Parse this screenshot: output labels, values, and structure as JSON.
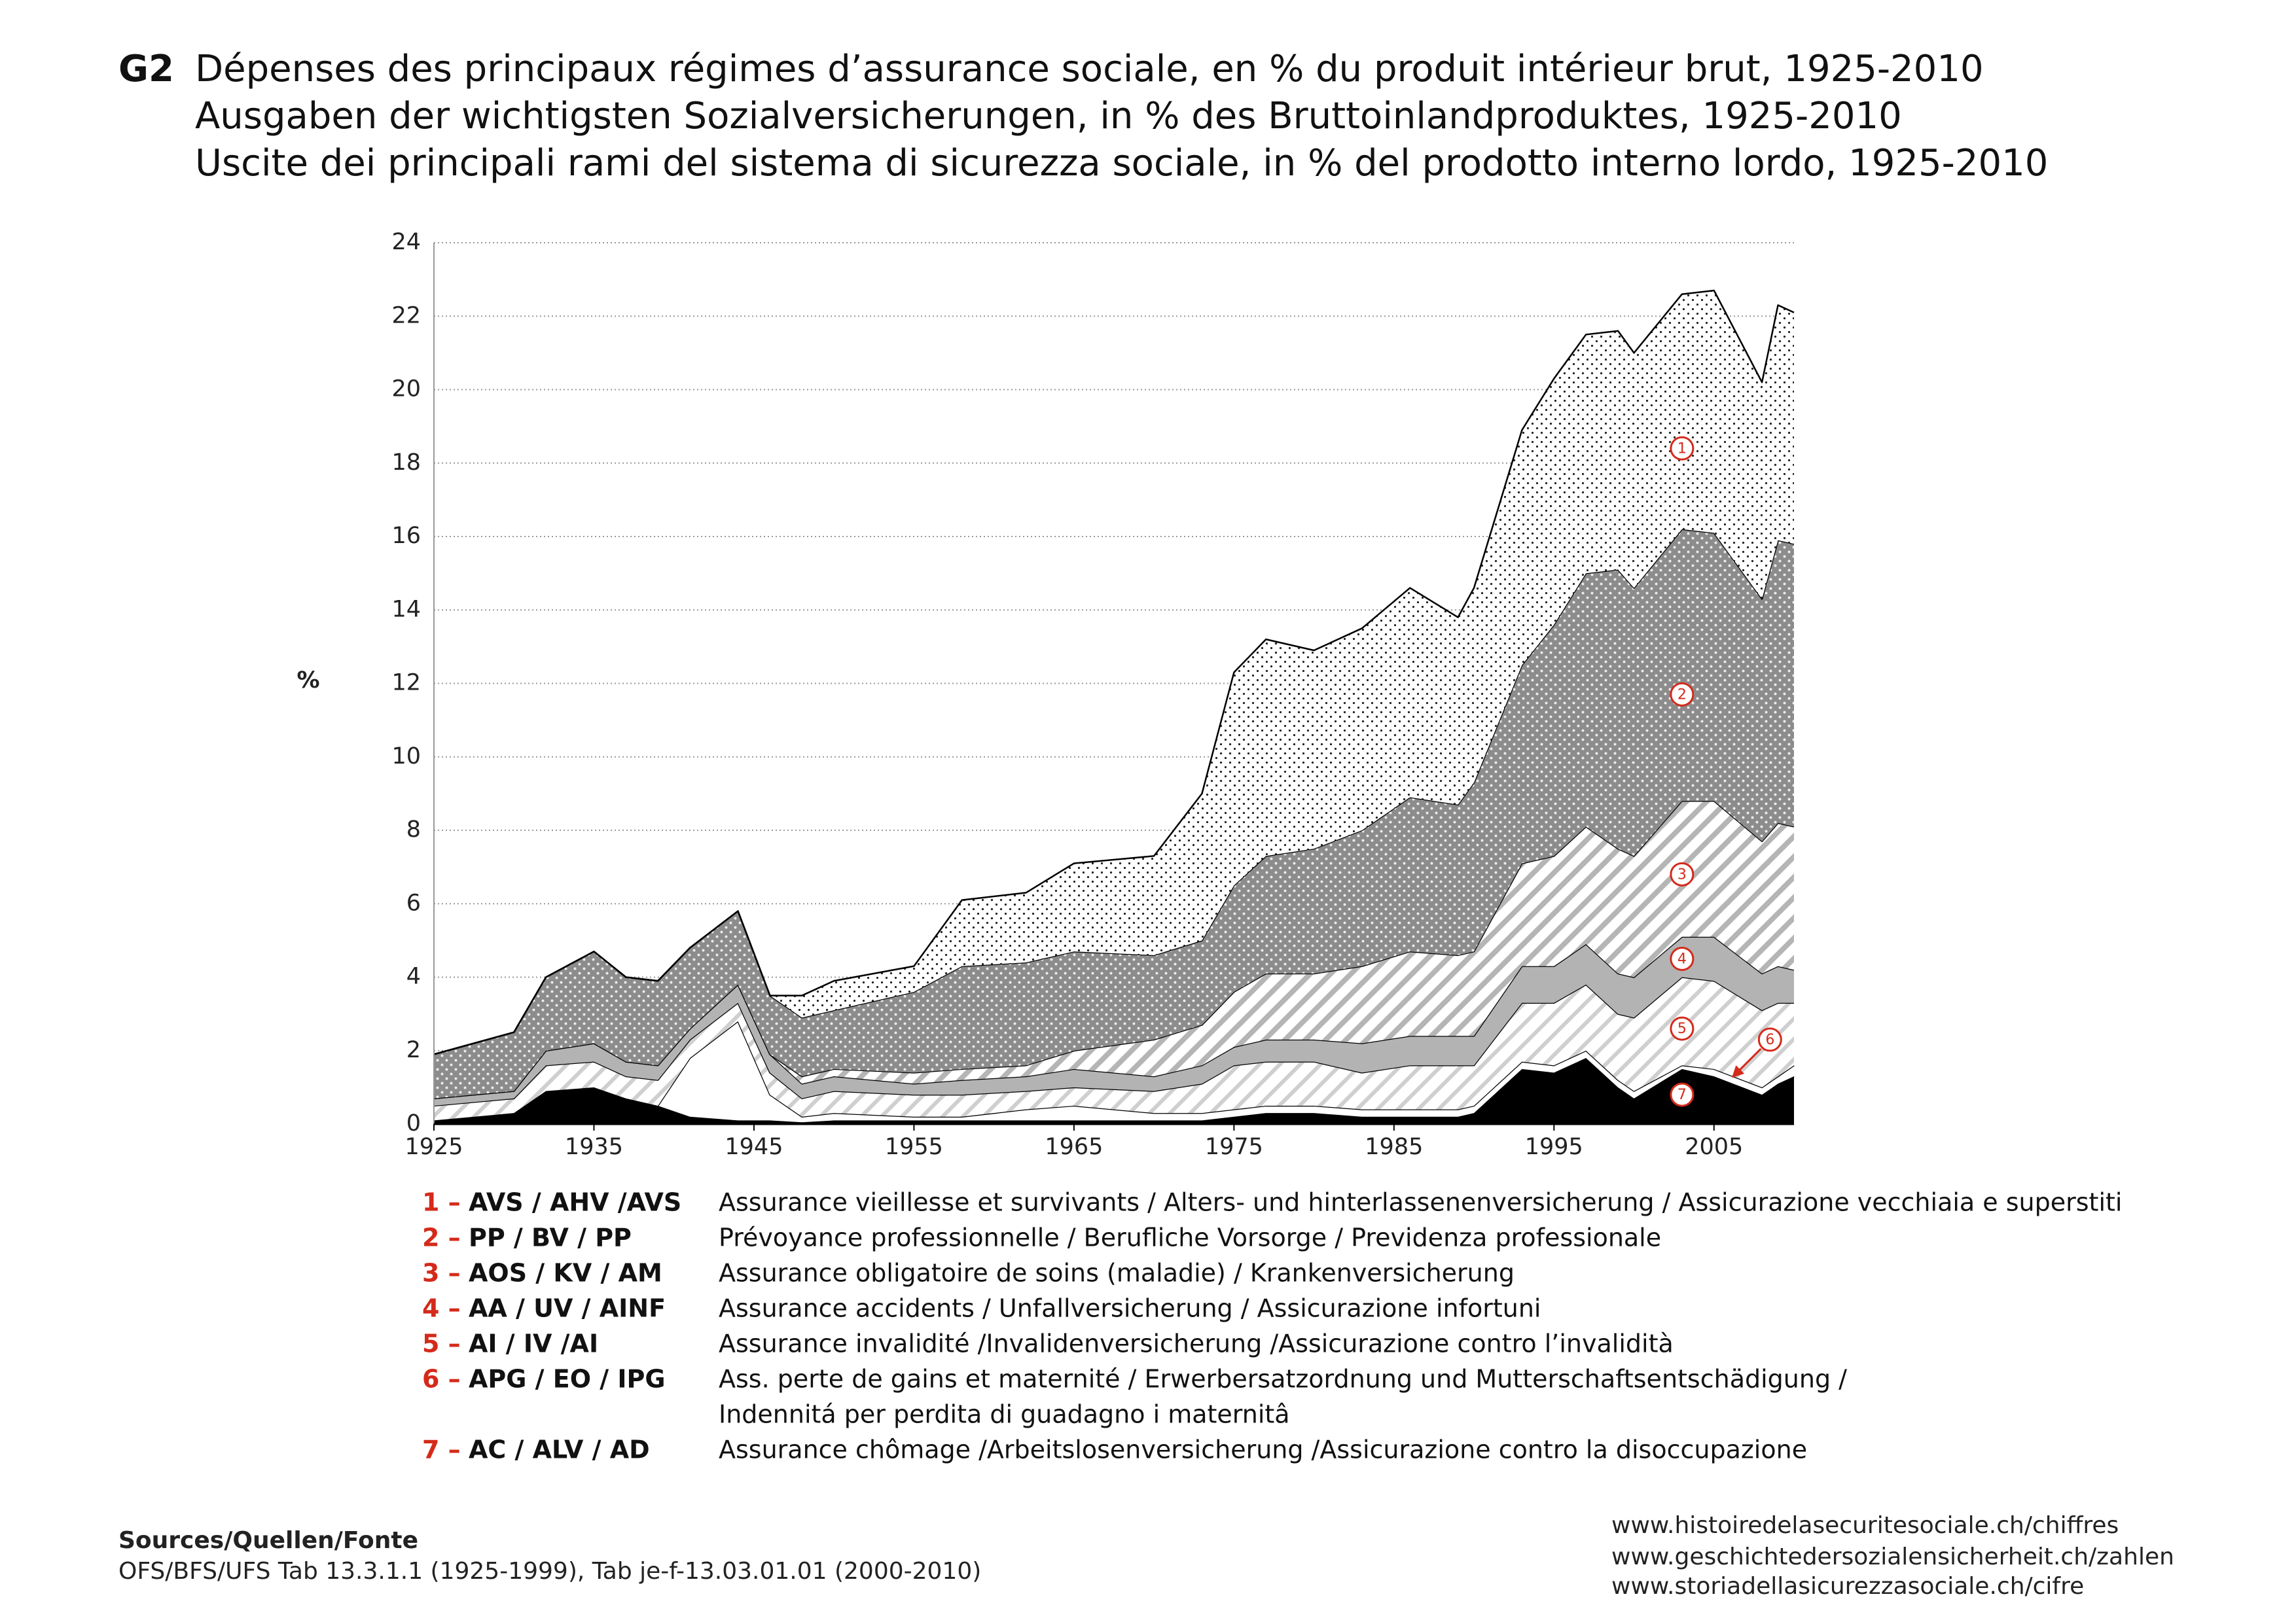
{
  "chart_data": {
    "type": "stacked_area",
    "title_code": "G2",
    "title": [
      "Dépenses des principaux régimes d’assurance sociale, en % du produit intérieur brut, 1925-2010",
      "Ausgaben der wichtigsten Sozialversicherungen, in % des Bruttoinlandproduktes, 1925-2010",
      "Uscite dei principali rami del sistema di sicurezza sociale, in % del prodotto interno lordo, 1925-2010"
    ],
    "y_label": "%",
    "xlim": [
      1925,
      2010
    ],
    "xticks": [
      1925,
      1935,
      1945,
      1955,
      1965,
      1975,
      1985,
      1995,
      2005
    ],
    "ylim": [
      0,
      24
    ],
    "yticks": [
      0,
      2,
      4,
      6,
      8,
      10,
      12,
      14,
      16,
      18,
      20,
      22,
      24
    ],
    "grid": true,
    "x": [
      1925,
      1930,
      1932,
      1935,
      1937,
      1939,
      1941,
      1944,
      1946,
      1948,
      1950,
      1955,
      1958,
      1962,
      1965,
      1970,
      1973,
      1975,
      1977,
      1980,
      1983,
      1986,
      1989,
      1990,
      1993,
      1995,
      1997,
      1999,
      2000,
      2003,
      2005,
      2008,
      2009,
      2010
    ],
    "series": [
      {
        "key": "7 –",
        "marker": "7",
        "name": "AC / ALV / AD",
        "description": [
          "Assurance chômage /Arbeitslosenversicherung /Assicurazione contro la disoccupazione"
        ],
        "color": "#000000",
        "pattern": "none",
        "values": [
          0.1,
          0.3,
          0.9,
          1.0,
          0.7,
          0.5,
          0.2,
          0.1,
          0.1,
          0.05,
          0.1,
          0.1,
          0.1,
          0.1,
          0.1,
          0.1,
          0.1,
          0.2,
          0.3,
          0.3,
          0.2,
          0.2,
          0.2,
          0.3,
          1.5,
          1.4,
          1.8,
          1.0,
          0.7,
          1.5,
          1.3,
          0.8,
          1.1,
          1.3
        ]
      },
      {
        "key": "6 –",
        "marker": "6",
        "name": "APG / EO / IPG",
        "description": [
          "Ass. perte de gains et maternité / Erwerbersatzordnung und Mutterschaftsentschädigung /",
          "Indennitá per perdita di guadagno i maternitâ"
        ],
        "color": "#ffffff",
        "pattern": "none",
        "values": [
          0,
          0,
          0,
          0,
          0,
          0,
          1.6,
          2.7,
          0.7,
          0.15,
          0.2,
          0.1,
          0.1,
          0.3,
          0.4,
          0.2,
          0.2,
          0.2,
          0.2,
          0.2,
          0.2,
          0.2,
          0.2,
          0.2,
          0.2,
          0.2,
          0.2,
          0.2,
          0.2,
          0.1,
          0.2,
          0.2,
          0.2,
          0.3
        ]
      },
      {
        "key": "5 –",
        "marker": "5",
        "name": "AI / IV /AI",
        "description": [
          "Assurance invalidité /Invalidenversicherung /Assicurazione contro l’invalidità"
        ],
        "color": "#ffffff",
        "pattern": "hatch-light",
        "values": [
          0.4,
          0.4,
          0.7,
          0.7,
          0.6,
          0.7,
          0.5,
          0.5,
          0.6,
          0.5,
          0.6,
          0.6,
          0.6,
          0.5,
          0.5,
          0.6,
          0.8,
          1.2,
          1.2,
          1.2,
          1.0,
          1.2,
          1.2,
          1.1,
          1.6,
          1.7,
          1.8,
          1.8,
          2.0,
          2.4,
          2.4,
          2.1,
          2.0,
          1.7
        ]
      },
      {
        "key": "4 –",
        "marker": "4",
        "name": "AA / UV / AINF",
        "description": [
          "Assurance accidents / Unfallversicherung / Assicurazione infortuni"
        ],
        "color": "#b3b3b3",
        "pattern": "none",
        "values": [
          0.2,
          0.2,
          0.4,
          0.5,
          0.4,
          0.4,
          0.3,
          0.5,
          0.5,
          0.4,
          0.4,
          0.3,
          0.4,
          0.4,
          0.5,
          0.4,
          0.5,
          0.5,
          0.6,
          0.6,
          0.8,
          0.8,
          0.8,
          0.8,
          1.0,
          1.0,
          1.1,
          1.1,
          1.1,
          1.1,
          1.2,
          1.0,
          1.0,
          0.9
        ]
      },
      {
        "key": "3 –",
        "marker": "3",
        "name": "AOS / KV / AM",
        "description": [
          "Assurance obligatoire de soins (maladie) / Krankenversicherung"
        ],
        "color": "#ffffff",
        "pattern": "hatch",
        "values": [
          0,
          0,
          0,
          0,
          0,
          0,
          0,
          0,
          0,
          0.2,
          0.2,
          0.3,
          0.3,
          0.3,
          0.5,
          1.0,
          1.1,
          1.5,
          1.8,
          1.8,
          2.1,
          2.3,
          2.2,
          2.3,
          2.8,
          3.0,
          3.2,
          3.4,
          3.3,
          3.7,
          3.7,
          3.6,
          3.9,
          3.9
        ]
      },
      {
        "key": "2 –",
        "marker": "2",
        "name": "PP / BV / PP",
        "description": [
          "Prévoyance professionnelle / Berufliche Vorsorge / Previdenza professionale"
        ],
        "color": "#8c8c8c",
        "pattern": "dots-light",
        "values": [
          1.2,
          1.6,
          2.0,
          2.5,
          2.3,
          2.3,
          2.2,
          2.0,
          1.6,
          1.6,
          1.6,
          2.2,
          2.8,
          2.8,
          2.7,
          2.3,
          2.3,
          2.9,
          3.2,
          3.4,
          3.7,
          4.2,
          4.1,
          4.6,
          5.4,
          6.3,
          6.9,
          7.6,
          7.3,
          7.4,
          7.3,
          6.6,
          7.7,
          7.7
        ]
      },
      {
        "key": "1 –",
        "marker": "1",
        "name": "AVS / AHV /AVS",
        "description": [
          "Assurance vieillesse et survivants / Alters- und hinterlassenenversicherung / Assicurazione vecchiaia e superstiti"
        ],
        "color": "#ffffff",
        "pattern": "dots-dark",
        "values": [
          0,
          0,
          0,
          0,
          0,
          0,
          0,
          0,
          0,
          0.6,
          0.8,
          0.7,
          1.8,
          1.9,
          2.4,
          2.7,
          4.0,
          5.8,
          5.9,
          5.4,
          5.5,
          5.7,
          5.1,
          5.3,
          6.4,
          6.7,
          6.5,
          6.5,
          6.4,
          6.4,
          6.6,
          5.9,
          6.4,
          6.3
        ]
      }
    ],
    "sources_title": "Sources/Quellen/Fonte",
    "sources": "OFS/BFS/UFS Tab 13.3.1.1 (1925-1999), Tab je-f-13.03.01.01 (2000-2010)",
    "links": [
      "www.histoiredelasecuritesociale.ch/chiffres",
      "www.geschichtedersozialensicherheit.ch/zahlen",
      "www.storiadellasicurezzasociale.ch/cifre"
    ]
  }
}
